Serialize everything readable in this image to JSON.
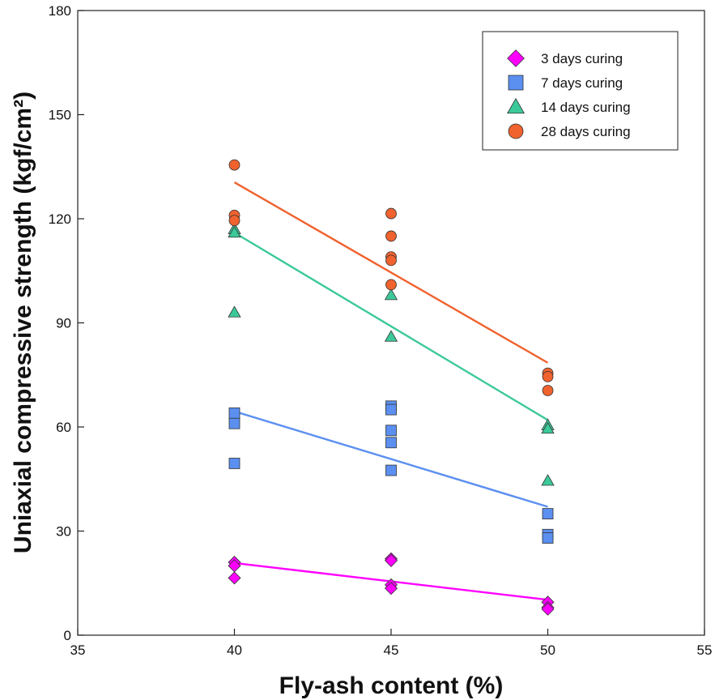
{
  "chart_data": {
    "type": "scatter",
    "title": "",
    "xlabel": "Fly-ash content (%)",
    "ylabel": "Uniaxial compressive strength (kgf/cm²)",
    "xlim": [
      35,
      55
    ],
    "ylim": [
      0,
      180
    ],
    "xticks": [
      "35",
      "40",
      "45",
      "50",
      "55"
    ],
    "yticks": [
      "0",
      "30",
      "60",
      "90",
      "120",
      "150",
      "180"
    ],
    "grid": false,
    "legend_position": "top-right",
    "series": [
      {
        "name": "3 days curing",
        "marker": "diamond",
        "color": "#ff00ff",
        "points": [
          [
            40,
            21
          ],
          [
            40,
            20
          ],
          [
            40,
            16.5
          ],
          [
            45,
            22
          ],
          [
            45,
            21.5
          ],
          [
            45,
            14.5
          ],
          [
            45,
            13.5
          ],
          [
            50,
            9.5
          ],
          [
            50,
            8
          ],
          [
            50,
            7.5
          ]
        ],
        "fit": [
          [
            40,
            20.8
          ],
          [
            50,
            10.2
          ]
        ]
      },
      {
        "name": "7 days curing",
        "marker": "square",
        "color": "#5b8ff0",
        "points": [
          [
            40,
            64
          ],
          [
            40,
            61
          ],
          [
            40,
            49.5
          ],
          [
            45,
            66
          ],
          [
            45,
            65
          ],
          [
            45,
            59
          ],
          [
            45,
            55.5
          ],
          [
            45,
            47.5
          ],
          [
            50,
            35
          ],
          [
            50,
            29
          ],
          [
            50,
            28
          ]
        ],
        "fit": [
          [
            40,
            64.5
          ],
          [
            50,
            37
          ]
        ]
      },
      {
        "name": "14 days curing",
        "marker": "triangle",
        "color": "#3cc99a",
        "points": [
          [
            40,
            117
          ],
          [
            40,
            116
          ],
          [
            40,
            93
          ],
          [
            45,
            98
          ],
          [
            45,
            86
          ],
          [
            50,
            60.5
          ],
          [
            50,
            59.5
          ],
          [
            50,
            44.5
          ]
        ],
        "fit": [
          [
            40,
            116
          ],
          [
            50,
            62
          ]
        ]
      },
      {
        "name": "28 days curing",
        "marker": "circle",
        "color": "#f0622e",
        "points": [
          [
            40,
            135.5
          ],
          [
            40,
            121
          ],
          [
            40,
            119.5
          ],
          [
            45,
            121.5
          ],
          [
            45,
            115
          ],
          [
            45,
            109
          ],
          [
            45,
            108
          ],
          [
            45,
            101
          ],
          [
            50,
            75.5
          ],
          [
            50,
            74.5
          ],
          [
            50,
            70.5
          ]
        ],
        "fit": [
          [
            40,
            130.5
          ],
          [
            50,
            78.5
          ]
        ]
      }
    ]
  }
}
